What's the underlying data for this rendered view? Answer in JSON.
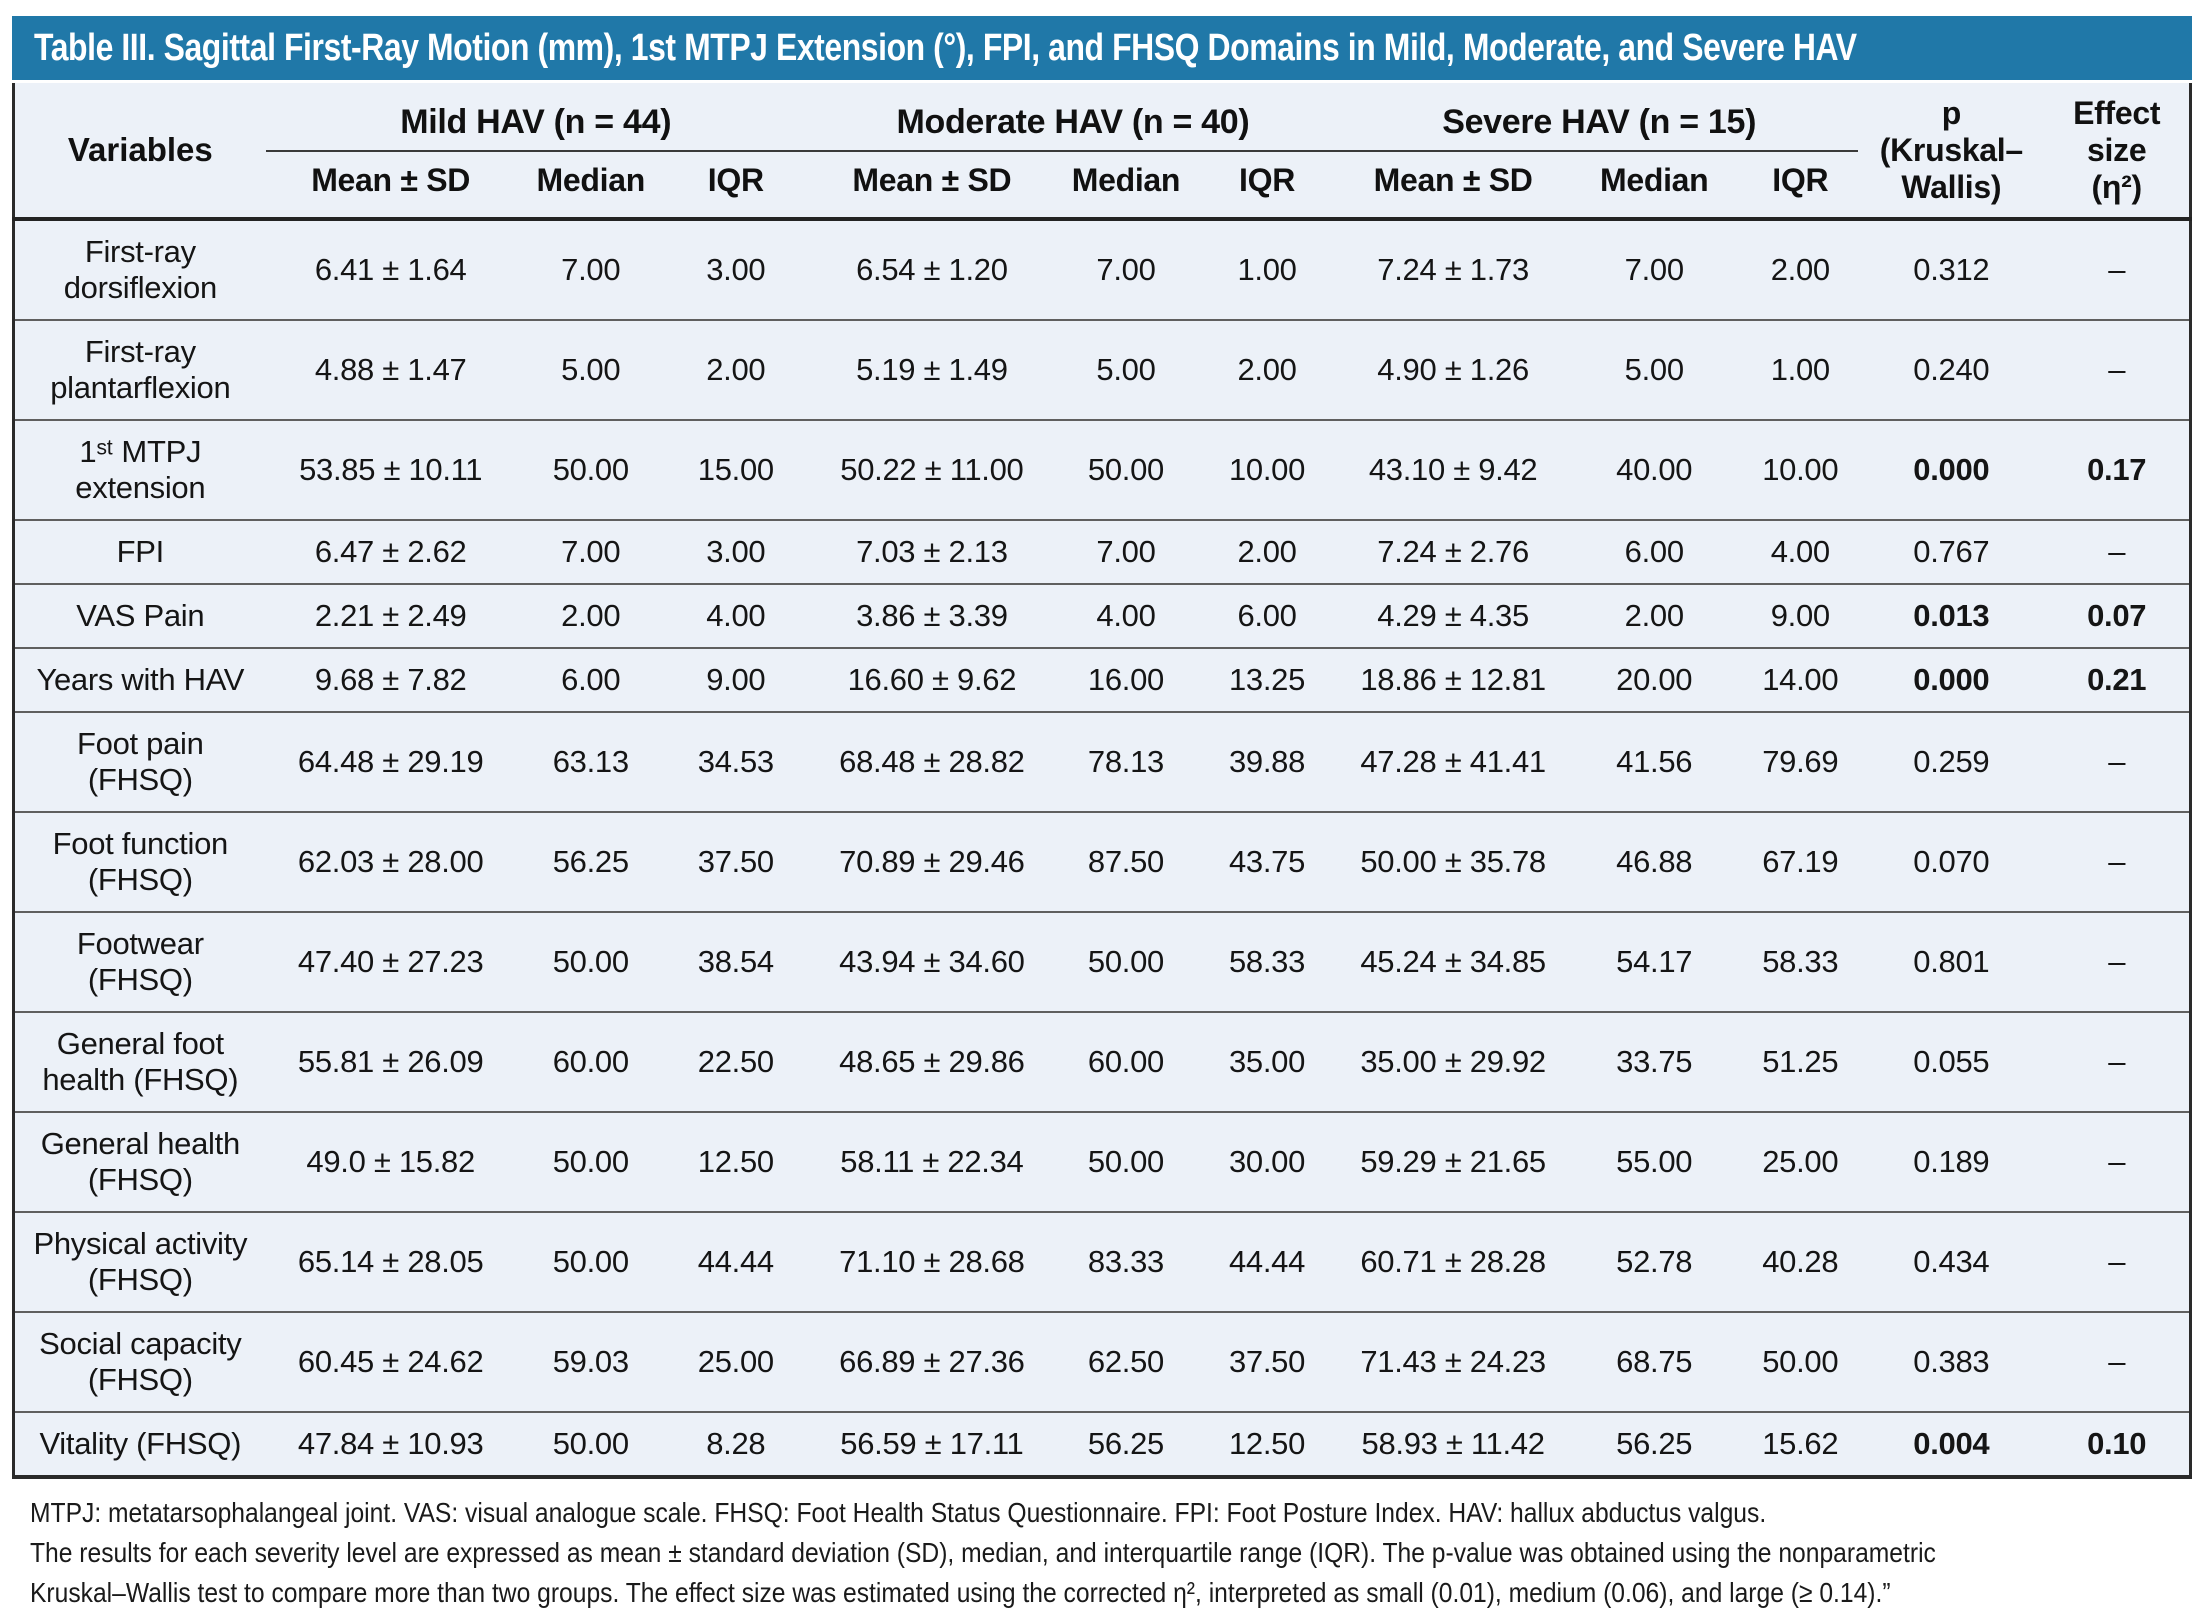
{
  "title": "Table III. Sagittal First-Ray Motion (mm), 1st MTPJ Extension (°), FPI, and FHSQ Domains in Mild, Moderate, and Severe HAV",
  "header": {
    "variables_label": "Variables",
    "groups": [
      "Mild HAV (n = 44)",
      "Moderate HAV (n = 40)",
      "Severe HAV (n = 15)"
    ],
    "subheaders": [
      "Mean ± SD",
      "Median",
      "IQR"
    ],
    "p_label": "p\n(Kruskal–\nWallis)",
    "effect_label": "Effect\nsize\n(η²)"
  },
  "rows": [
    {
      "label": "First-ray dorsiflexion",
      "emphasis": false,
      "cells": [
        "6.41 ± 1.64",
        "7.00",
        "3.00",
        "6.54 ± 1.20",
        "7.00",
        "1.00",
        "7.24 ± 1.73",
        "7.00",
        "2.00",
        "0.312",
        "–"
      ]
    },
    {
      "label": "First-ray plantarflexion",
      "emphasis": false,
      "cells": [
        "4.88 ± 1.47",
        "5.00",
        "2.00",
        "5.19 ± 1.49",
        "5.00",
        "2.00",
        "4.90 ± 1.26",
        "5.00",
        "1.00",
        "0.240",
        "–"
      ]
    },
    {
      "label": "1ˢᵗ MTPJ extension",
      "emphasis": true,
      "cells": [
        "53.85 ± 10.11",
        "50.00",
        "15.00",
        "50.22 ± 11.00",
        "50.00",
        "10.00",
        "43.10 ± 9.42",
        "40.00",
        "10.00",
        "0.000",
        "0.17"
      ]
    },
    {
      "label": "FPI",
      "emphasis": false,
      "cells": [
        "6.47 ± 2.62",
        "7.00",
        "3.00",
        "7.03 ± 2.13",
        "7.00",
        "2.00",
        "7.24 ± 2.76",
        "6.00",
        "4.00",
        "0.767",
        "–"
      ]
    },
    {
      "label": "VAS Pain",
      "emphasis": true,
      "cells": [
        "2.21 ± 2.49",
        "2.00",
        "4.00",
        "3.86 ± 3.39",
        "4.00",
        "6.00",
        "4.29 ± 4.35",
        "2.00",
        "9.00",
        "0.013",
        "0.07"
      ]
    },
    {
      "label": "Years with HAV",
      "emphasis": true,
      "cells": [
        "9.68 ± 7.82",
        "6.00",
        "9.00",
        "16.60 ± 9.62",
        "16.00",
        "13.25",
        "18.86 ± 12.81",
        "20.00",
        "14.00",
        "0.000",
        "0.21"
      ]
    },
    {
      "label": "Foot pain (FHSQ)",
      "emphasis": false,
      "cells": [
        "64.48 ± 29.19",
        "63.13",
        "34.53",
        "68.48 ± 28.82",
        "78.13",
        "39.88",
        "47.28 ± 41.41",
        "41.56",
        "79.69",
        "0.259",
        "–"
      ]
    },
    {
      "label": "Foot function (FHSQ)",
      "emphasis": false,
      "cells": [
        "62.03 ± 28.00",
        "56.25",
        "37.50",
        "70.89 ± 29.46",
        "87.50",
        "43.75",
        "50.00 ± 35.78",
        "46.88",
        "67.19",
        "0.070",
        "–"
      ]
    },
    {
      "label": "Footwear (FHSQ)",
      "emphasis": false,
      "cells": [
        "47.40 ± 27.23",
        "50.00",
        "38.54",
        "43.94 ± 34.60",
        "50.00",
        "58.33",
        "45.24 ± 34.85",
        "54.17",
        "58.33",
        "0.801",
        "–"
      ]
    },
    {
      "label": "General foot health (FHSQ)",
      "emphasis": false,
      "cells": [
        "55.81 ± 26.09",
        "60.00",
        "22.50",
        "48.65 ± 29.86",
        "60.00",
        "35.00",
        "35.00 ± 29.92",
        "33.75",
        "51.25",
        "0.055",
        "–"
      ]
    },
    {
      "label": "General health (FHSQ)",
      "emphasis": false,
      "cells": [
        "49.0 ± 15.82",
        "50.00",
        "12.50",
        "58.11 ± 22.34",
        "50.00",
        "30.00",
        "59.29 ± 21.65",
        "55.00",
        "25.00",
        "0.189",
        "–"
      ]
    },
    {
      "label": "Physical activity (FHSQ)",
      "emphasis": false,
      "cells": [
        "65.14 ± 28.05",
        "50.00",
        "44.44",
        "71.10 ± 28.68",
        "83.33",
        "44.44",
        "60.71 ± 28.28",
        "52.78",
        "40.28",
        "0.434",
        "–"
      ]
    },
    {
      "label": "Social capacity (FHSQ)",
      "emphasis": false,
      "cells": [
        "60.45 ± 24.62",
        "59.03",
        "25.00",
        "66.89 ± 27.36",
        "62.50",
        "37.50",
        "71.43 ± 24.23",
        "68.75",
        "50.00",
        "0.383",
        "–"
      ]
    },
    {
      "label": "Vitality (FHSQ)",
      "emphasis": true,
      "cells": [
        "47.84 ± 10.93",
        "50.00",
        "8.28",
        "56.59 ± 17.11",
        "56.25",
        "12.50",
        "58.93 ± 11.42",
        "56.25",
        "15.62",
        "0.004",
        "0.10"
      ]
    }
  ],
  "footnotes": [
    "MTPJ: metatarsophalangeal joint. VAS: visual analogue scale. FHSQ: Foot Health Status Questionnaire. FPI: Foot Posture Index. HAV: hallux abductus valgus.",
    "The results for each severity level are expressed as mean ± standard deviation (SD), median, and interquartile range (IQR). The p-value was obtained using the nonparametric",
    "Kruskal–Wallis test to compare more than two groups. The effect size was estimated using the corrected η², interpreted as small (0.01), medium (0.06), and large (≥ 0.14).”"
  ],
  "colors": {
    "title_bar_bg": "#2078a8",
    "title_text": "#ffffff",
    "table_bg": "#ecf1f8",
    "outer_border": "#2a2a2a",
    "row_line": "#5f5f5f"
  }
}
